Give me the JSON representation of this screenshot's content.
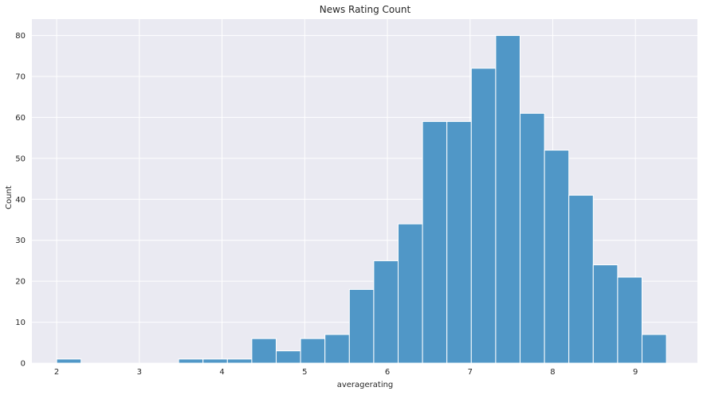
{
  "chart_data": {
    "type": "bar",
    "title": "News Rating Count",
    "xlabel": "averagerating",
    "ylabel": "Count",
    "xlim": [
      1.7,
      9.75
    ],
    "ylim": [
      0,
      84
    ],
    "xticks": [
      2,
      3,
      4,
      5,
      6,
      7,
      8,
      9
    ],
    "yticks": [
      0,
      10,
      20,
      30,
      40,
      50,
      60,
      70,
      80
    ],
    "grid": true,
    "bin_width": 0.295,
    "bins": [
      {
        "x0": 2.0,
        "count": 1
      },
      {
        "x0": 2.295,
        "count": 0
      },
      {
        "x0": 2.59,
        "count": 0
      },
      {
        "x0": 2.885,
        "count": 0
      },
      {
        "x0": 3.18,
        "count": 0
      },
      {
        "x0": 3.475,
        "count": 1
      },
      {
        "x0": 3.77,
        "count": 1
      },
      {
        "x0": 4.065,
        "count": 1
      },
      {
        "x0": 4.36,
        "count": 6
      },
      {
        "x0": 4.655,
        "count": 3
      },
      {
        "x0": 4.95,
        "count": 6
      },
      {
        "x0": 5.245,
        "count": 7
      },
      {
        "x0": 5.54,
        "count": 18
      },
      {
        "x0": 5.835,
        "count": 25
      },
      {
        "x0": 6.13,
        "count": 34
      },
      {
        "x0": 6.425,
        "count": 59
      },
      {
        "x0": 6.72,
        "count": 59
      },
      {
        "x0": 7.015,
        "count": 72
      },
      {
        "x0": 7.31,
        "count": 80
      },
      {
        "x0": 7.605,
        "count": 61
      },
      {
        "x0": 7.9,
        "count": 52
      },
      {
        "x0": 8.195,
        "count": 41
      },
      {
        "x0": 8.49,
        "count": 24
      },
      {
        "x0": 8.785,
        "count": 21
      },
      {
        "x0": 9.08,
        "count": 7
      }
    ],
    "colors": {
      "bar_fill": "#5097c7",
      "bar_edge": "#ffffff",
      "plot_background": "#eaeaf2",
      "grid": "#ffffff"
    }
  }
}
